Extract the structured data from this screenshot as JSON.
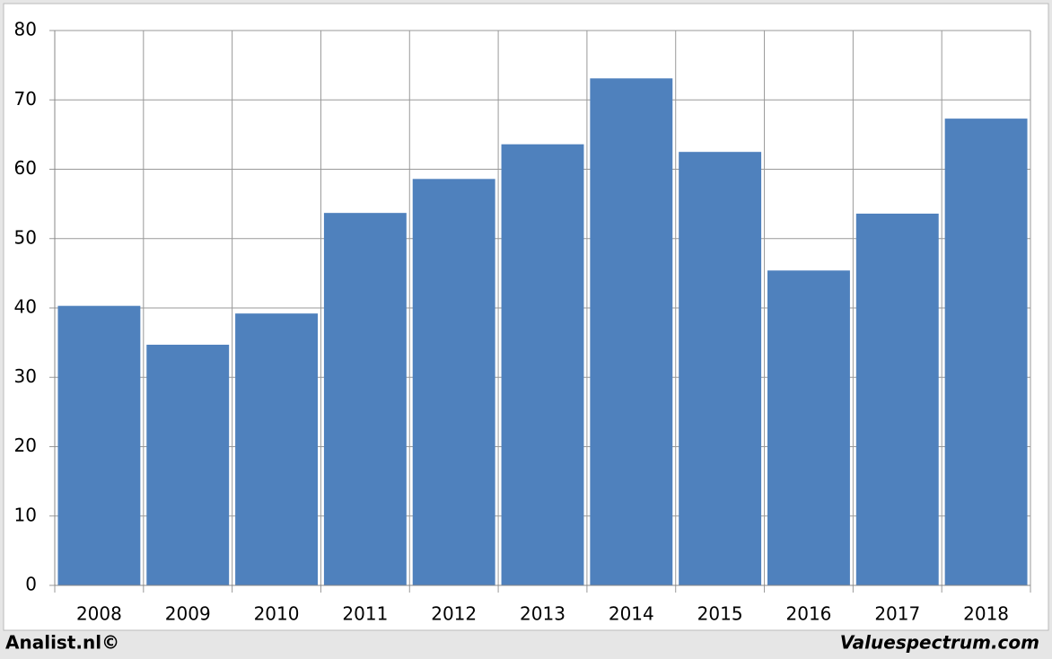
{
  "chart_data": {
    "type": "bar",
    "categories": [
      "2008",
      "2009",
      "2010",
      "2011",
      "2012",
      "2013",
      "2014",
      "2015",
      "2016",
      "2017",
      "2018"
    ],
    "values": [
      40.3,
      34.7,
      39.2,
      53.7,
      58.6,
      63.6,
      73.1,
      62.5,
      45.4,
      53.6,
      67.3
    ],
    "color": "#4f81bd",
    "ylim": [
      0,
      80
    ],
    "yticks": [
      0,
      10,
      20,
      30,
      40,
      50,
      60,
      70,
      80
    ],
    "grid": true,
    "source_left": "Analist.nl©",
    "source_right": "Valuespectrum.com"
  }
}
